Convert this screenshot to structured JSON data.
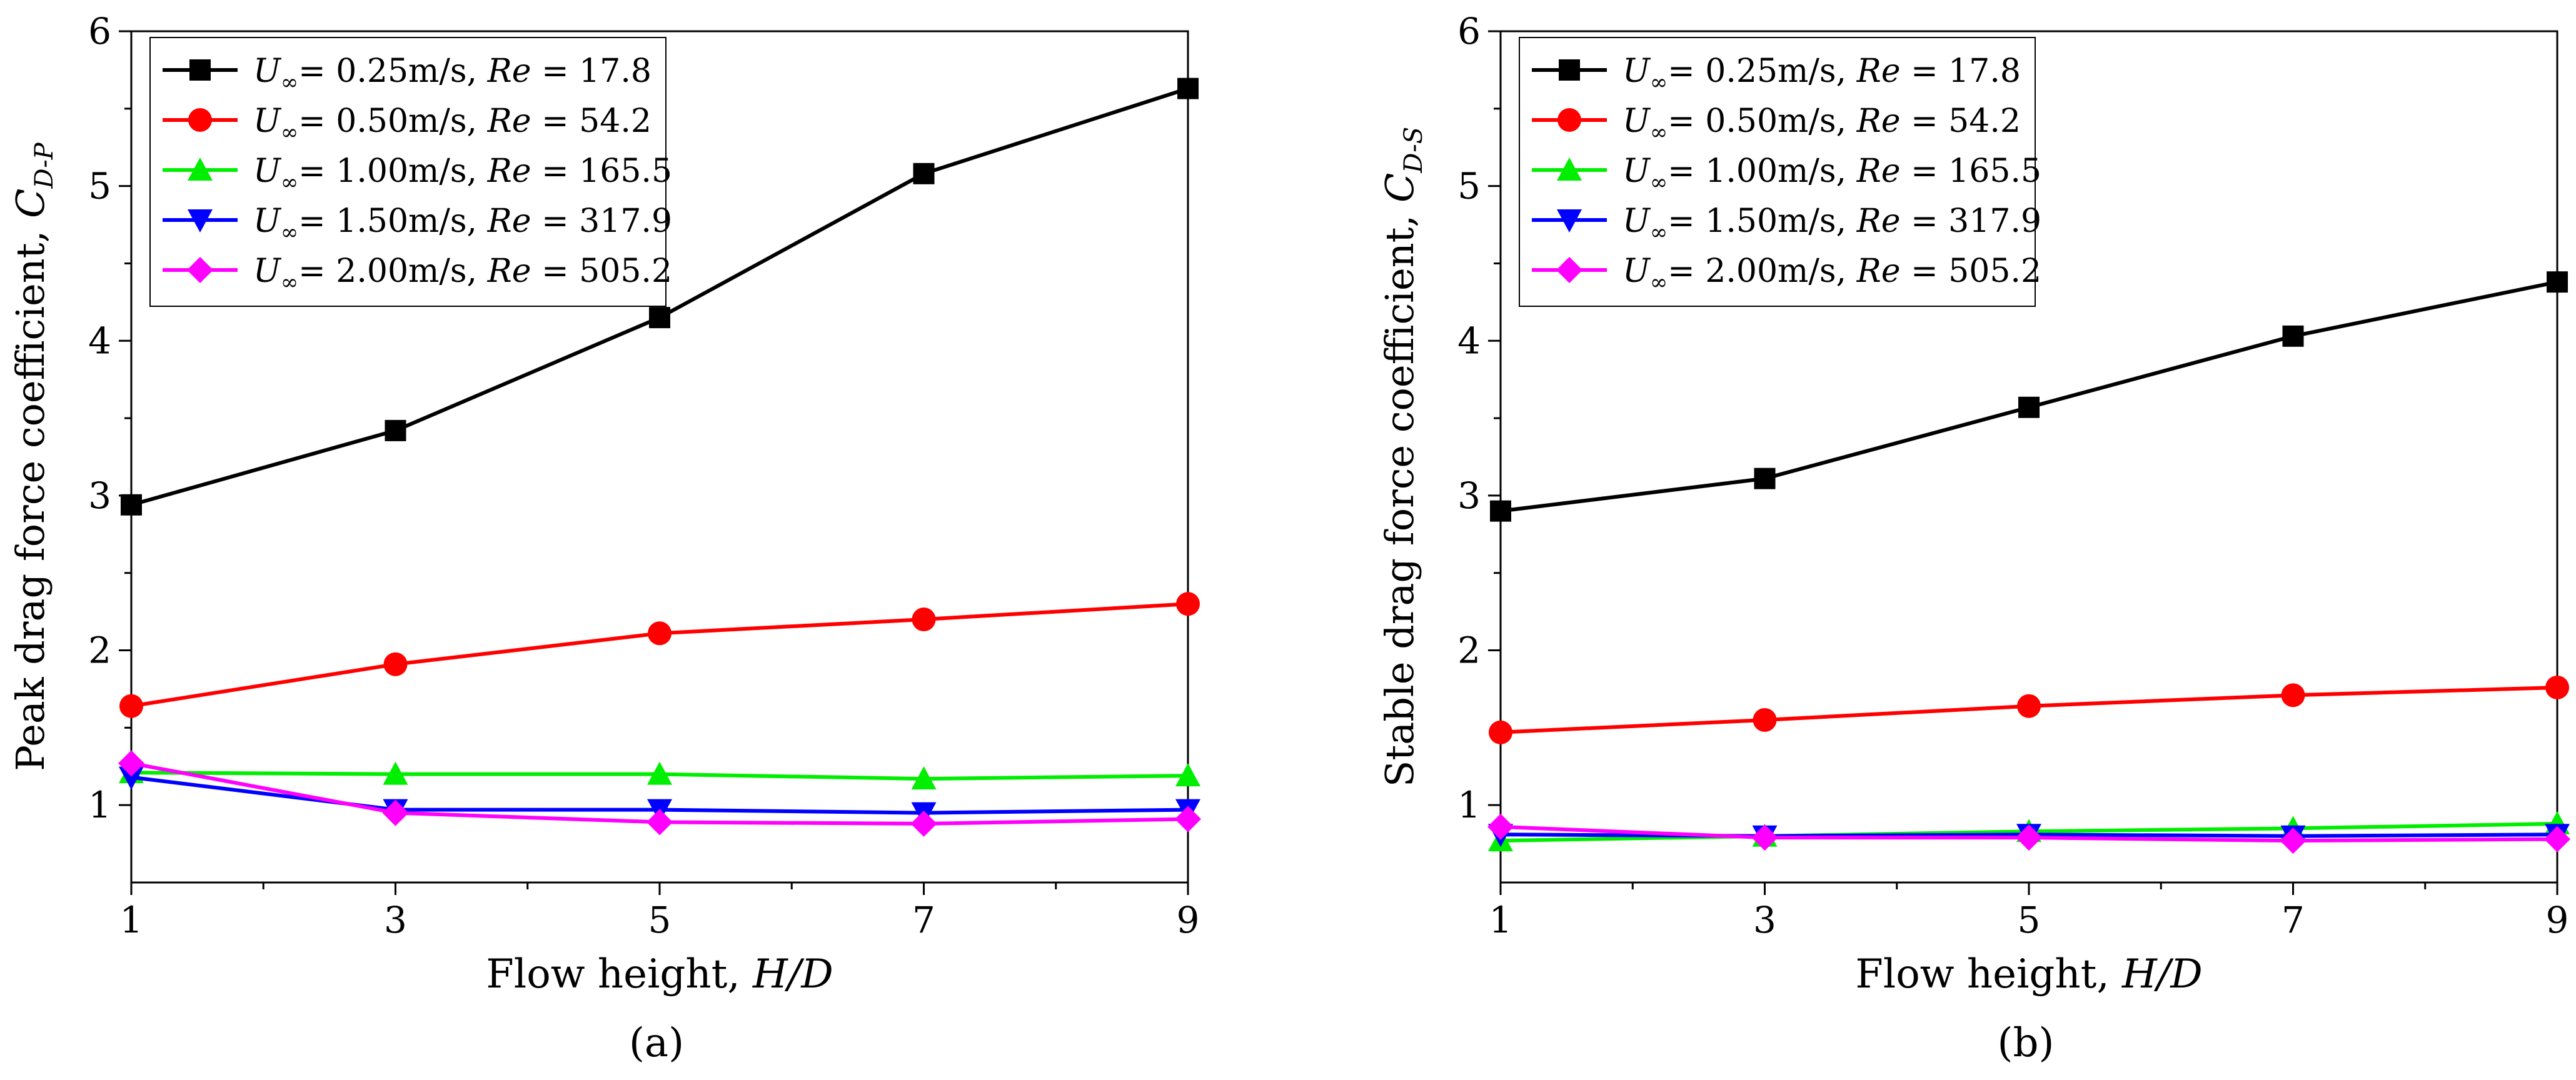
{
  "figure": {
    "panels": [
      "(a)",
      "(b)"
    ]
  },
  "chart_data": [
    {
      "type": "line",
      "panel_label": "(a)",
      "xlabel": {
        "text": "Flow height, ",
        "var": "H/D"
      },
      "ylabel": {
        "text": "Peak drag force coefficient, ",
        "var": "C",
        "sub": "D-P"
      },
      "xlim": [
        1,
        9
      ],
      "ylim": [
        0.5,
        6
      ],
      "xticks": [
        1,
        3,
        5,
        7,
        9
      ],
      "xminor": [
        2,
        4,
        6,
        8
      ],
      "yticks": [
        1,
        2,
        3,
        4,
        5,
        6
      ],
      "yminor": [
        1.5,
        2.5,
        3.5,
        4.5,
        5.5
      ],
      "grid": false,
      "legend_position": "top-left",
      "x": [
        1,
        3,
        5,
        7,
        9
      ],
      "series": [
        {
          "speed": "0.25m/s",
          "re": "17.8",
          "color": "#000000",
          "marker": "square",
          "values": [
            2.94,
            3.42,
            4.15,
            5.08,
            5.63
          ]
        },
        {
          "speed": "0.50m/s",
          "re": "54.2",
          "color": "#ff0000",
          "marker": "circle",
          "values": [
            1.64,
            1.91,
            2.11,
            2.2,
            2.3
          ]
        },
        {
          "speed": "1.00m/s",
          "re": "165.5",
          "color": "#00ee00",
          "marker": "triangle-up",
          "values": [
            1.21,
            1.2,
            1.2,
            1.17,
            1.19
          ]
        },
        {
          "speed": "1.50m/s",
          "re": "317.9",
          "color": "#0000ff",
          "marker": "triangle-down",
          "values": [
            1.18,
            0.97,
            0.97,
            0.95,
            0.97
          ]
        },
        {
          "speed": "2.00m/s",
          "re": "505.2",
          "color": "#ff00ff",
          "marker": "diamond",
          "values": [
            1.27,
            0.95,
            0.89,
            0.88,
            0.91
          ]
        }
      ]
    },
    {
      "type": "line",
      "panel_label": "(b)",
      "xlabel": {
        "text": "Flow height, ",
        "var": "H/D"
      },
      "ylabel": {
        "text": "Stable drag force coefficient, ",
        "var": "C",
        "sub": "D-S"
      },
      "xlim": [
        1,
        9
      ],
      "ylim": [
        0.5,
        6
      ],
      "xticks": [
        1,
        3,
        5,
        7,
        9
      ],
      "xminor": [
        2,
        4,
        6,
        8
      ],
      "yticks": [
        1,
        2,
        3,
        4,
        5,
        6
      ],
      "yminor": [
        1.5,
        2.5,
        3.5,
        4.5,
        5.5
      ],
      "grid": false,
      "legend_position": "top-left",
      "x": [
        1,
        3,
        5,
        7,
        9
      ],
      "series": [
        {
          "speed": "0.25m/s",
          "re": "17.8",
          "color": "#000000",
          "marker": "square",
          "values": [
            2.9,
            3.11,
            3.57,
            4.03,
            4.38
          ]
        },
        {
          "speed": "0.50m/s",
          "re": "54.2",
          "color": "#ff0000",
          "marker": "circle",
          "values": [
            1.47,
            1.55,
            1.64,
            1.71,
            1.76
          ]
        },
        {
          "speed": "1.00m/s",
          "re": "165.5",
          "color": "#00ee00",
          "marker": "triangle-up",
          "values": [
            0.77,
            0.8,
            0.83,
            0.85,
            0.88
          ]
        },
        {
          "speed": "1.50m/s",
          "re": "317.9",
          "color": "#0000ff",
          "marker": "triangle-down",
          "values": [
            0.81,
            0.8,
            0.81,
            0.8,
            0.81
          ]
        },
        {
          "speed": "2.00m/s",
          "re": "505.2",
          "color": "#ff00ff",
          "marker": "diamond",
          "values": [
            0.86,
            0.79,
            0.79,
            0.77,
            0.78
          ]
        }
      ]
    }
  ]
}
